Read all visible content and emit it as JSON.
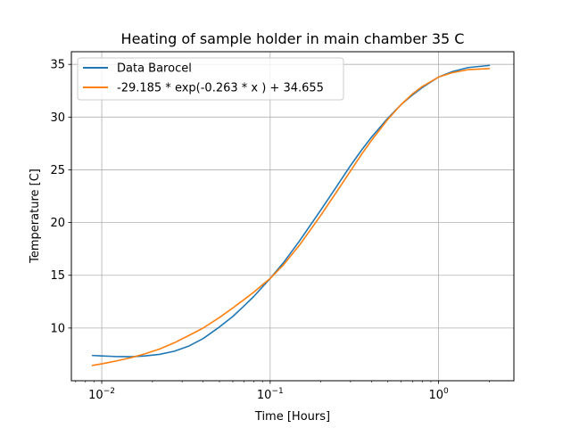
{
  "chart_data": {
    "type": "line",
    "title": "Heating of sample holder in main chamber 35 C",
    "xlabel": "Time [Hours]",
    "ylabel": "Temperature [C]",
    "xscale": "log",
    "xlim": [
      0.0066,
      2.8
    ],
    "ylim": [
      5.0,
      36.2
    ],
    "grid": true,
    "legend_position": "upper-left",
    "x_ticks": [
      {
        "value": 0.01,
        "base": "10",
        "exp": "−2"
      },
      {
        "value": 0.1,
        "base": "10",
        "exp": "−1"
      },
      {
        "value": 1,
        "base": "10",
        "exp": "0"
      }
    ],
    "y_ticks": [
      10,
      15,
      20,
      25,
      30,
      35
    ],
    "series": [
      {
        "name": "Data Barocel",
        "color": "#1f77b4",
        "points": [
          [
            0.0088,
            7.4
          ],
          [
            0.01,
            7.35
          ],
          [
            0.012,
            7.3
          ],
          [
            0.015,
            7.28
          ],
          [
            0.018,
            7.35
          ],
          [
            0.022,
            7.5
          ],
          [
            0.027,
            7.8
          ],
          [
            0.033,
            8.3
          ],
          [
            0.04,
            9.0
          ],
          [
            0.05,
            10.1
          ],
          [
            0.06,
            11.1
          ],
          [
            0.07,
            12.1
          ],
          [
            0.08,
            13.0
          ],
          [
            0.09,
            13.9
          ],
          [
            0.1,
            14.7
          ],
          [
            0.12,
            16.2
          ],
          [
            0.15,
            18.3
          ],
          [
            0.2,
            21.2
          ],
          [
            0.25,
            23.5
          ],
          [
            0.3,
            25.4
          ],
          [
            0.35,
            26.9
          ],
          [
            0.4,
            28.1
          ],
          [
            0.5,
            29.9
          ],
          [
            0.6,
            31.2
          ],
          [
            0.7,
            32.1
          ],
          [
            0.8,
            32.8
          ],
          [
            1.0,
            33.8
          ],
          [
            1.2,
            34.3
          ],
          [
            1.5,
            34.7
          ],
          [
            2.0,
            34.9
          ]
        ]
      },
      {
        "name": "-29.185 * exp(-0.263 * x ) + 34.655",
        "color": "#ff7f0e",
        "points": [
          [
            0.0088,
            6.45
          ],
          [
            0.01,
            6.6
          ],
          [
            0.012,
            6.85
          ],
          [
            0.015,
            7.2
          ],
          [
            0.018,
            7.55
          ],
          [
            0.022,
            8.0
          ],
          [
            0.027,
            8.6
          ],
          [
            0.033,
            9.3
          ],
          [
            0.04,
            10.0
          ],
          [
            0.05,
            11.0
          ],
          [
            0.06,
            11.9
          ],
          [
            0.07,
            12.7
          ],
          [
            0.08,
            13.4
          ],
          [
            0.09,
            14.1
          ],
          [
            0.1,
            14.7
          ],
          [
            0.12,
            16.0
          ],
          [
            0.15,
            17.9
          ],
          [
            0.2,
            20.7
          ],
          [
            0.25,
            23.0
          ],
          [
            0.3,
            24.9
          ],
          [
            0.35,
            26.5
          ],
          [
            0.4,
            27.8
          ],
          [
            0.5,
            29.8
          ],
          [
            0.6,
            31.2
          ],
          [
            0.7,
            32.2
          ],
          [
            0.8,
            32.9
          ],
          [
            1.0,
            33.8
          ],
          [
            1.2,
            34.2
          ],
          [
            1.5,
            34.5
          ],
          [
            2.0,
            34.6
          ]
        ]
      }
    ]
  }
}
